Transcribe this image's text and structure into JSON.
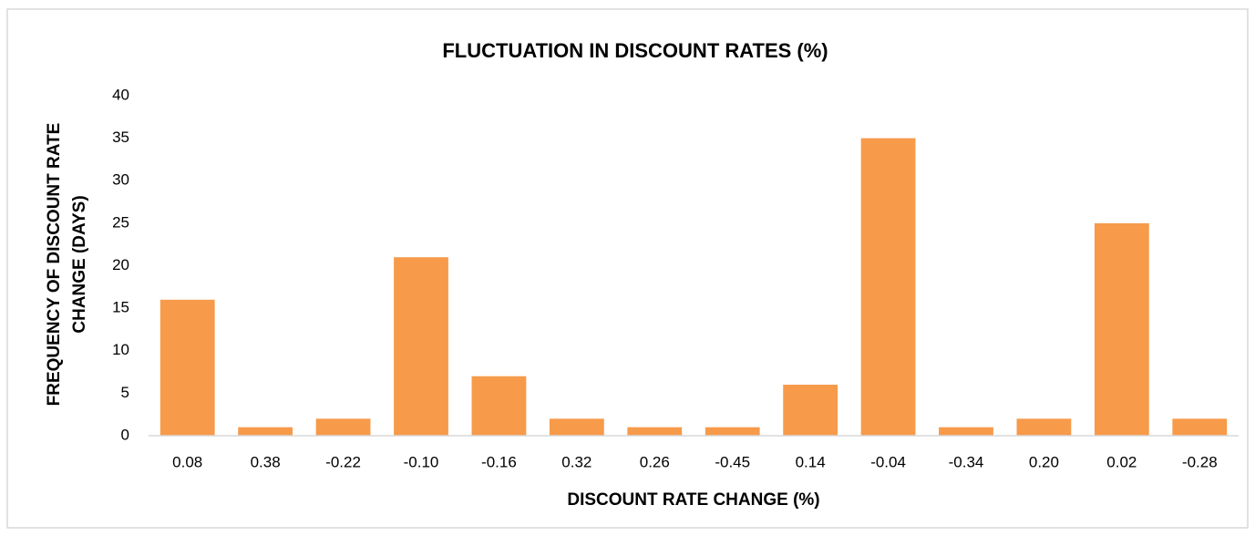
{
  "chart_data": {
    "type": "bar",
    "title": "FLUCTUATION IN DISCOUNT RATES (%)",
    "xlabel": "DISCOUNT RATE CHANGE (%)",
    "ylabel": [
      "FREQUENCY OF DISCOUNT RATE",
      "CHANGE  (DAYS)"
    ],
    "categories": [
      "0.08",
      "0.38",
      "-0.22",
      "-0.10",
      "-0.16",
      "0.32",
      "0.26",
      "-0.45",
      "0.14",
      "-0.04",
      "-0.34",
      "0.20",
      "0.02",
      "-0.28"
    ],
    "values": [
      16,
      1,
      2,
      21,
      7,
      2,
      1,
      1,
      6,
      35,
      1,
      2,
      25,
      2
    ],
    "color": "#f79a4a",
    "ylim": [
      0,
      40
    ],
    "yticks": [
      0,
      5,
      10,
      15,
      20,
      25,
      30,
      35,
      40
    ],
    "grid": false
  }
}
